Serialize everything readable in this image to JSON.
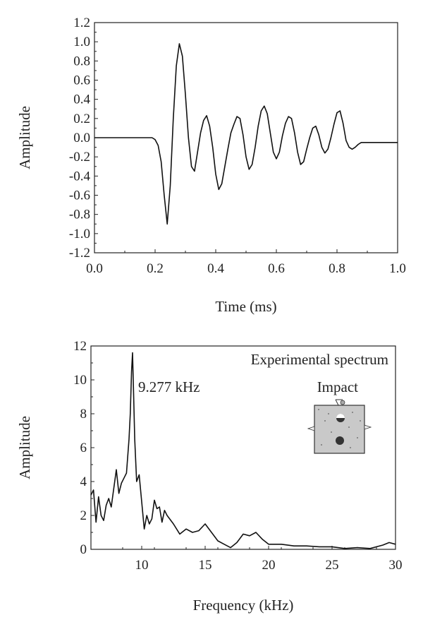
{
  "chart_data": [
    {
      "type": "line",
      "xlabel": "Time (ms)",
      "ylabel": "Amplitude",
      "xlim": [
        0.0,
        1.0
      ],
      "ylim": [
        -1.2,
        1.2
      ],
      "xticks": [
        "0.0",
        "0.2",
        "0.4",
        "0.6",
        "0.8",
        "1.0"
      ],
      "yticks": [
        "1.2",
        "1.0",
        "0.8",
        "0.6",
        "0.4",
        "0.2",
        "0.0",
        "-0.2",
        "-0.4",
        "-0.6",
        "-0.8",
        "-1.0",
        "-1.2"
      ],
      "series": [
        {
          "x": [
            0.0,
            0.19,
            0.2,
            0.21,
            0.22,
            0.23,
            0.24,
            0.25,
            0.26,
            0.27,
            0.28,
            0.29,
            0.3,
            0.31,
            0.32,
            0.33,
            0.34,
            0.35,
            0.36,
            0.37,
            0.38,
            0.39,
            0.4,
            0.41,
            0.42,
            0.43,
            0.44,
            0.45,
            0.46,
            0.47,
            0.48,
            0.49,
            0.5,
            0.51,
            0.52,
            0.53,
            0.54,
            0.55,
            0.56,
            0.57,
            0.58,
            0.59,
            0.6,
            0.61,
            0.62,
            0.63,
            0.64,
            0.65,
            0.66,
            0.67,
            0.68,
            0.69,
            0.7,
            0.71,
            0.72,
            0.73,
            0.74,
            0.75,
            0.76,
            0.77,
            0.78,
            0.79,
            0.8,
            0.81,
            0.82,
            0.83,
            0.84,
            0.85,
            0.86,
            0.87,
            0.88,
            0.89,
            0.9,
            0.91,
            0.92,
            0.93,
            0.94,
            0.95,
            0.96,
            0.97,
            0.98,
            0.99,
            1.0
          ],
          "y": [
            0.0,
            0.0,
            -0.02,
            -0.08,
            -0.25,
            -0.6,
            -0.9,
            -0.5,
            0.2,
            0.75,
            0.98,
            0.85,
            0.45,
            0.0,
            -0.3,
            -0.35,
            -0.15,
            0.05,
            0.18,
            0.23,
            0.12,
            -0.1,
            -0.38,
            -0.54,
            -0.48,
            -0.3,
            -0.12,
            0.05,
            0.14,
            0.22,
            0.2,
            0.03,
            -0.2,
            -0.33,
            -0.28,
            -0.1,
            0.12,
            0.28,
            0.33,
            0.25,
            0.05,
            -0.15,
            -0.22,
            -0.15,
            0.02,
            0.15,
            0.22,
            0.2,
            0.05,
            -0.15,
            -0.28,
            -0.25,
            -0.12,
            0.0,
            0.1,
            0.12,
            0.03,
            -0.1,
            -0.16,
            -0.12,
            0.0,
            0.14,
            0.26,
            0.28,
            0.15,
            -0.03,
            -0.1,
            -0.12,
            -0.1,
            -0.07,
            -0.05,
            -0.05,
            -0.05,
            -0.05,
            -0.05,
            -0.05,
            -0.05,
            -0.05,
            -0.05,
            -0.05,
            -0.05,
            -0.05,
            -0.05
          ]
        }
      ]
    },
    {
      "type": "line",
      "xlabel": "Frequency (kHz)",
      "ylabel": "Amplitude",
      "xlim": [
        6,
        30
      ],
      "ylim": [
        0,
        12
      ],
      "xticks": [
        "10",
        "15",
        "20",
        "25",
        "30"
      ],
      "yticks": [
        "12",
        "10",
        "8",
        "6",
        "4",
        "2",
        "0"
      ],
      "annotations": {
        "legend": "Experimental spectrum",
        "inset_label": "Impact",
        "peak_label": "9.277 kHz"
      },
      "series": [
        {
          "x": [
            6.0,
            6.2,
            6.4,
            6.6,
            6.8,
            7.0,
            7.2,
            7.4,
            7.6,
            7.8,
            8.0,
            8.2,
            8.4,
            8.6,
            8.8,
            9.0,
            9.1,
            9.2,
            9.277,
            9.35,
            9.45,
            9.6,
            9.8,
            10.0,
            10.2,
            10.4,
            10.6,
            10.8,
            11.0,
            11.2,
            11.4,
            11.6,
            11.8,
            12.0,
            12.5,
            13.0,
            13.5,
            14.0,
            14.5,
            15.0,
            15.5,
            16.0,
            16.5,
            17.0,
            17.5,
            18.0,
            18.5,
            19.0,
            19.5,
            20.0,
            21.0,
            22.0,
            23.0,
            24.0,
            25.0,
            26.0,
            27.0,
            28.0,
            29.0,
            29.5,
            30.0
          ],
          "y": [
            3.2,
            3.5,
            1.6,
            3.1,
            2.0,
            1.7,
            2.6,
            3.0,
            2.5,
            3.6,
            4.7,
            3.3,
            3.9,
            4.2,
            4.5,
            6.5,
            8.0,
            10.5,
            11.6,
            9.5,
            6.5,
            4.0,
            4.4,
            2.8,
            1.2,
            2.0,
            1.5,
            1.8,
            2.9,
            2.4,
            2.5,
            1.6,
            2.3,
            2.0,
            1.5,
            0.9,
            1.2,
            1.0,
            1.1,
            1.5,
            1.0,
            0.5,
            0.3,
            0.1,
            0.4,
            0.9,
            0.8,
            1.0,
            0.6,
            0.3,
            0.3,
            0.2,
            0.2,
            0.15,
            0.15,
            0.05,
            0.1,
            0.05,
            0.25,
            0.4,
            0.3
          ]
        }
      ]
    }
  ]
}
